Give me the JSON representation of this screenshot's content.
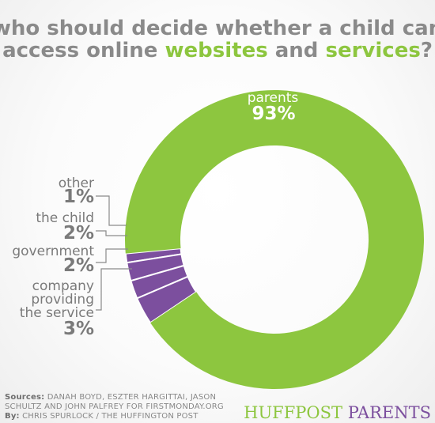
{
  "title": {
    "line1": "who should decide whether a child can",
    "line2_a": "access online ",
    "line2_hl1": "websites",
    "line2_b": " and ",
    "line2_hl2": "services",
    "line2_c": "?"
  },
  "chart_data": {
    "type": "pie",
    "variant": "donut",
    "slices": [
      {
        "name": "parents",
        "value": 93,
        "label": "93%",
        "color": "#8dc63f"
      },
      {
        "name": "other",
        "value": 1,
        "label": "1%",
        "color": "#7c4f9e"
      },
      {
        "name": "the child",
        "value": 2,
        "label": "2%",
        "color": "#7c4f9e"
      },
      {
        "name": "government",
        "value": 2,
        "label": "2%",
        "color": "#7c4f9e"
      },
      {
        "name": "company providing the service",
        "name_lines": [
          "company",
          "providing",
          "the service"
        ],
        "value": 3,
        "label": "3%",
        "color": "#7c4f9e"
      }
    ]
  },
  "footer": {
    "sources_label": "Sources:",
    "sources_line1": " DANAH BOYD, ESZTER HARGITTAI, JASON",
    "sources_line2": "SCHULTZ AND JOHN PALFREY FOR FIRSTMONDAY.ORG",
    "by_label": "By:",
    "by_text": " CHRIS SPURLOCK / THE HUFFINGTON POST",
    "brand_a": "HUFFPOST",
    "brand_b": " PARENTS"
  },
  "colors": {
    "accent_green": "#8dc63f",
    "accent_purple": "#7c4f9e",
    "text_gray": "#7a7a7a"
  }
}
